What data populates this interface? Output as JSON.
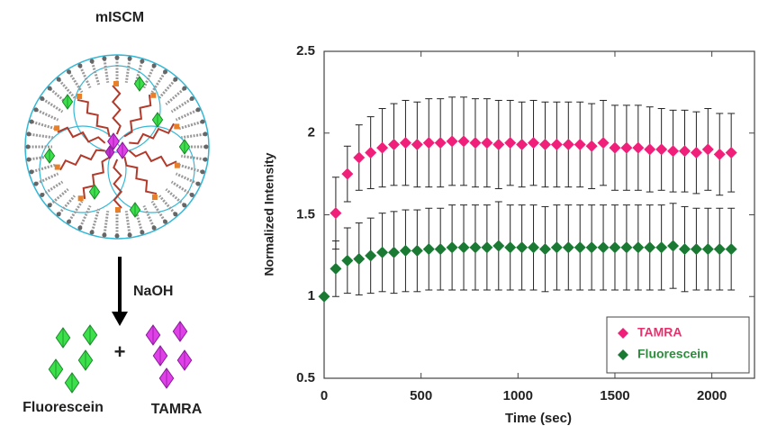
{
  "diagram": {
    "title": "mISCM",
    "reagent": "NaOH",
    "plus": "+",
    "products": [
      "Fluorescein",
      "TAMRA"
    ]
  },
  "chart_data": {
    "type": "scatter",
    "x_label": "Time (sec)",
    "y_label": "Normalized Intensity",
    "xlim": [
      0,
      2220
    ],
    "xticks": [
      0,
      500,
      1000,
      1500,
      2000
    ],
    "ylim": [
      0.5,
      2.5
    ],
    "yticks": [
      0.5,
      1,
      1.5,
      2,
      2.5
    ],
    "legend": "lower right",
    "series": [
      {
        "name": "TAMRA",
        "color": "#f0207a",
        "text_color": "#e8306e",
        "x": [
          60,
          120,
          180,
          240,
          300,
          360,
          420,
          480,
          540,
          600,
          660,
          720,
          780,
          840,
          900,
          960,
          1020,
          1080,
          1140,
          1200,
          1260,
          1320,
          1380,
          1440,
          1500,
          1560,
          1620,
          1680,
          1740,
          1800,
          1860,
          1920,
          1980,
          2040,
          2100
        ],
        "values": [
          1.51,
          1.75,
          1.85,
          1.88,
          1.91,
          1.93,
          1.94,
          1.93,
          1.94,
          1.94,
          1.95,
          1.95,
          1.94,
          1.94,
          1.93,
          1.94,
          1.93,
          1.94,
          1.93,
          1.93,
          1.93,
          1.93,
          1.92,
          1.94,
          1.91,
          1.91,
          1.91,
          1.9,
          1.9,
          1.89,
          1.89,
          1.88,
          1.9,
          1.87,
          1.88
        ],
        "errors": [
          0.22,
          0.17,
          0.2,
          0.22,
          0.24,
          0.25,
          0.26,
          0.26,
          0.27,
          0.27,
          0.27,
          0.27,
          0.27,
          0.27,
          0.27,
          0.26,
          0.26,
          0.26,
          0.26,
          0.26,
          0.26,
          0.26,
          0.26,
          0.26,
          0.26,
          0.26,
          0.26,
          0.26,
          0.25,
          0.25,
          0.25,
          0.25,
          0.25,
          0.25,
          0.24
        ]
      },
      {
        "name": "Fluorescein",
        "color": "#1a7a34",
        "text_color": "#2e8b3e",
        "x": [
          0,
          60,
          120,
          180,
          240,
          300,
          360,
          420,
          480,
          540,
          600,
          660,
          720,
          780,
          840,
          900,
          960,
          1020,
          1080,
          1140,
          1200,
          1260,
          1320,
          1380,
          1440,
          1500,
          1560,
          1620,
          1680,
          1740,
          1800,
          1860,
          1920,
          1980,
          2040,
          2100
        ],
        "values": [
          1.0,
          1.17,
          1.22,
          1.23,
          1.25,
          1.27,
          1.27,
          1.28,
          1.28,
          1.29,
          1.29,
          1.3,
          1.3,
          1.3,
          1.3,
          1.31,
          1.3,
          1.3,
          1.3,
          1.29,
          1.3,
          1.3,
          1.3,
          1.3,
          1.3,
          1.3,
          1.3,
          1.3,
          1.3,
          1.3,
          1.31,
          1.29,
          1.29,
          1.29,
          1.29,
          1.29
        ],
        "errors": [
          0,
          0.17,
          0.2,
          0.22,
          0.23,
          0.24,
          0.25,
          0.25,
          0.25,
          0.25,
          0.25,
          0.26,
          0.26,
          0.26,
          0.26,
          0.27,
          0.26,
          0.26,
          0.26,
          0.26,
          0.26,
          0.26,
          0.26,
          0.26,
          0.26,
          0.26,
          0.26,
          0.26,
          0.26,
          0.26,
          0.26,
          0.26,
          0.25,
          0.25,
          0.25,
          0.25
        ]
      }
    ]
  }
}
